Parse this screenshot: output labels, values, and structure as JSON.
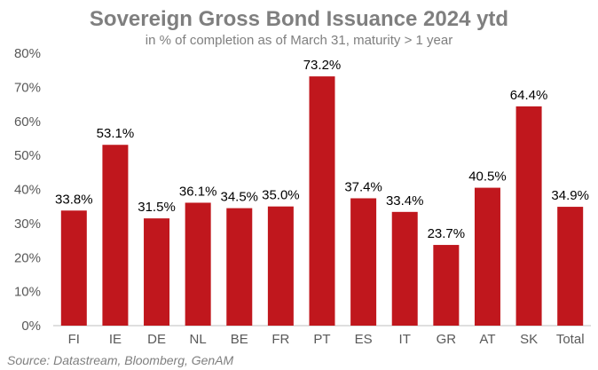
{
  "chart_data": {
    "type": "bar",
    "title": "Sovereign Gross Bond Issuance 2024 ytd",
    "subtitle": "in % of completion as of March 31, maturity > 1 year",
    "categories": [
      "FI",
      "IE",
      "DE",
      "NL",
      "BE",
      "FR",
      "PT",
      "ES",
      "IT",
      "GR",
      "AT",
      "SK",
      "Total"
    ],
    "values": [
      33.8,
      53.1,
      31.5,
      36.1,
      34.5,
      35.0,
      73.2,
      37.4,
      33.4,
      23.7,
      40.5,
      64.4,
      34.9
    ],
    "data_labels": [
      "33.8%",
      "53.1%",
      "31.5%",
      "36.1%",
      "34.5%",
      "35.0%",
      "73.2%",
      "37.4%",
      "33.4%",
      "23.7%",
      "40.5%",
      "64.4%",
      "34.9%"
    ],
    "yticks": [
      0,
      10,
      20,
      30,
      40,
      50,
      60,
      70,
      80
    ],
    "ytick_labels": [
      "0%",
      "10%",
      "20%",
      "30%",
      "40%",
      "50%",
      "60%",
      "70%",
      "80%"
    ],
    "ylim": [
      0,
      80
    ],
    "xlabel": "",
    "ylabel": "",
    "grid": false,
    "legend": "none",
    "bar_color": "#c0171d",
    "source": "Source: Datastream, Bloomberg, GenAM"
  }
}
